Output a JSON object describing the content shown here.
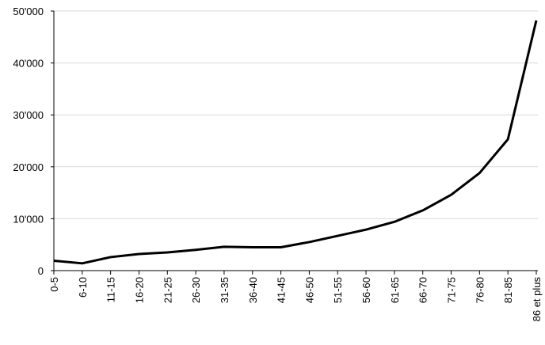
{
  "chart_data": {
    "type": "line",
    "categories": [
      "0-5",
      "6-10",
      "11-15",
      "16-20",
      "21-25",
      "26-30",
      "31-35",
      "36-40",
      "41-45",
      "46-50",
      "51-55",
      "56-60",
      "61-65",
      "66-70",
      "71-75",
      "76-80",
      "81-85",
      "86 et plus"
    ],
    "values": [
      1900,
      1400,
      2600,
      3200,
      3500,
      4000,
      4600,
      4500,
      4500,
      5500,
      6700,
      7900,
      9400,
      11600,
      14600,
      18800,
      25300,
      48200
    ],
    "color": "#000000",
    "ylim": [
      0,
      50000
    ],
    "yticks": [
      0,
      {
        "value": 10000,
        "label": "10'000"
      },
      {
        "value": 20000,
        "label": "20'000"
      },
      {
        "value": 30000,
        "label": "30'000"
      },
      {
        "value": 40000,
        "label": "40'000"
      },
      {
        "value": 50000,
        "label": "50'000"
      }
    ],
    "grid": true
  }
}
